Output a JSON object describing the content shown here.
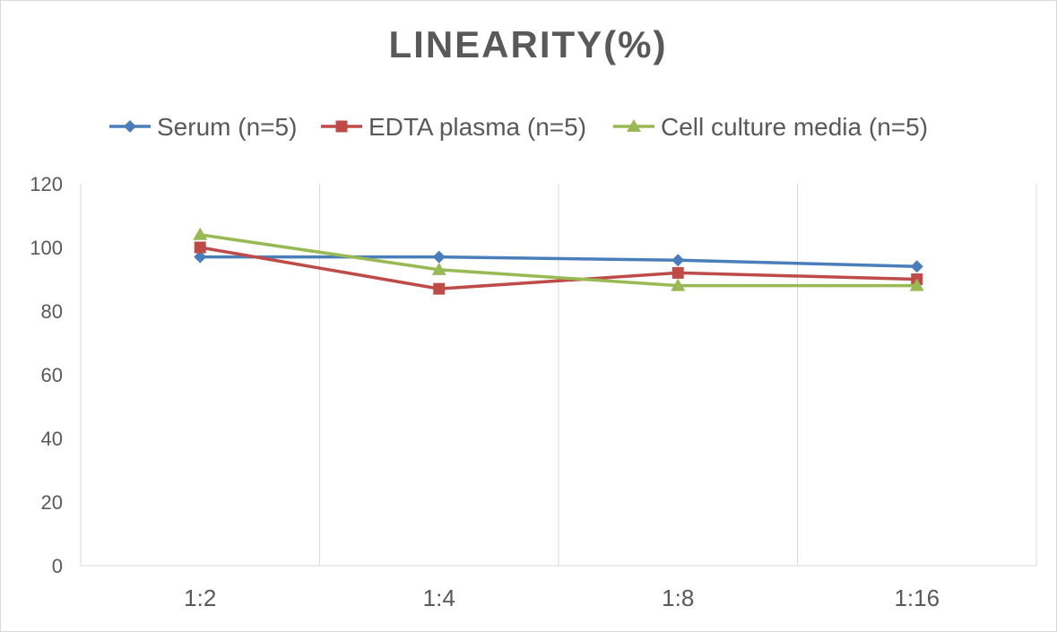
{
  "chart_data": {
    "type": "line",
    "title": "LINEARITY(%)",
    "categories": [
      "1:2",
      "1:4",
      "1:8",
      "1:16"
    ],
    "series": [
      {
        "name": "Serum (n=5)",
        "values": [
          97,
          97,
          96,
          94
        ],
        "color": "#4a7ebb",
        "marker": "diamond"
      },
      {
        "name": "EDTA plasma (n=5)",
        "values": [
          100,
          87,
          92,
          90
        ],
        "color": "#be4b48",
        "marker": "square"
      },
      {
        "name": "Cell culture media (n=5)",
        "values": [
          104,
          93,
          88,
          88
        ],
        "color": "#98b954",
        "marker": "triangle"
      }
    ],
    "ylim": [
      0,
      120
    ],
    "yticks": [
      "0",
      "20",
      "40",
      "60",
      "80",
      "100",
      "120"
    ],
    "xlabel": "",
    "ylabel": "",
    "grid": "vertical category separators",
    "legend": "top"
  }
}
